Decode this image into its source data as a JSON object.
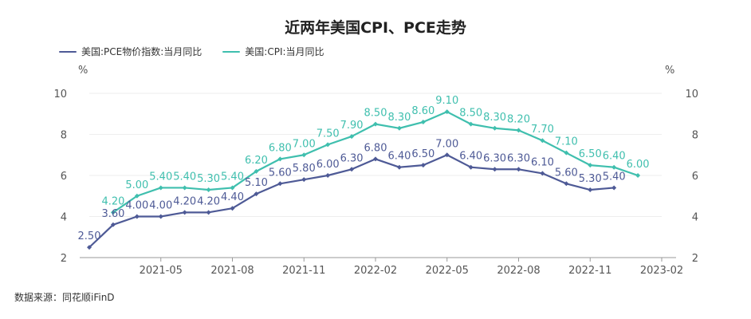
{
  "title": "近两年美国CPI、PCE走势",
  "source": "数据来源：同花顺iFinD",
  "colors": {
    "pce": "#4e5a96",
    "cpi": "#3fbfae",
    "grid": "#eeeeee",
    "axis": "#999999"
  },
  "chart_data": {
    "type": "line",
    "title": "近两年美国CPI、PCE走势",
    "x": [
      "2021-02",
      "2021-03",
      "2021-04",
      "2021-05",
      "2021-06",
      "2021-07",
      "2021-08",
      "2021-09",
      "2021-10",
      "2021-11",
      "2021-12",
      "2022-01",
      "2022-02",
      "2022-03",
      "2022-04",
      "2022-05",
      "2022-06",
      "2022-07",
      "2022-08",
      "2022-09",
      "2022-10",
      "2022-11",
      "2022-12",
      "2023-01",
      "2023-02"
    ],
    "xtick_labels": [
      "2021-05",
      "2021-08",
      "2021-11",
      "2022-02",
      "2022-05",
      "2022-08",
      "2022-11",
      "2023-02"
    ],
    "y_unit_left": "%",
    "y_unit_right": "%",
    "ylim": [
      2,
      10
    ],
    "yticks": [
      2,
      4,
      6,
      8,
      10
    ],
    "grid": true,
    "legend_position": "top-left",
    "series": [
      {
        "name": "美国:PCE物价指数:当月同比",
        "color": "#4e5a96",
        "values": [
          2.5,
          3.6,
          4.0,
          4.0,
          4.2,
          4.2,
          4.4,
          5.1,
          5.6,
          5.8,
          6.0,
          6.3,
          6.8,
          6.4,
          6.5,
          7.0,
          6.4,
          6.3,
          6.3,
          6.1,
          5.6,
          5.3,
          5.4,
          null,
          null
        ],
        "labels": [
          "2.50",
          "3.60",
          "4.00",
          "4.00",
          "4.20",
          "4.20",
          "4.40",
          "5.10",
          "5.60",
          "5.80",
          "6.00",
          "6.30",
          "6.80",
          "6.40",
          "6.50",
          "7.00",
          "6.40",
          "6.30",
          "6.30",
          "6.10",
          "5.60",
          "5.30",
          "5.40",
          "",
          ""
        ]
      },
      {
        "name": "美国:CPI:当月同比",
        "color": "#3fbfae",
        "values": [
          null,
          4.2,
          5.0,
          5.4,
          5.4,
          5.3,
          5.4,
          6.2,
          6.8,
          7.0,
          7.5,
          7.9,
          8.5,
          8.3,
          8.6,
          9.1,
          8.5,
          8.3,
          8.2,
          7.7,
          7.1,
          6.5,
          6.4,
          6.0,
          null
        ],
        "labels": [
          "",
          "4.20",
          "5.00",
          "5.40",
          "5.40",
          "5.30",
          "5.40",
          "6.20",
          "6.80",
          "7.00",
          "7.50",
          "7.90",
          "8.50",
          "8.30",
          "8.60",
          "9.10",
          "8.50",
          "8.30",
          "8.20",
          "7.70",
          "7.10",
          "6.50",
          "6.40",
          "6.00",
          ""
        ]
      }
    ]
  }
}
